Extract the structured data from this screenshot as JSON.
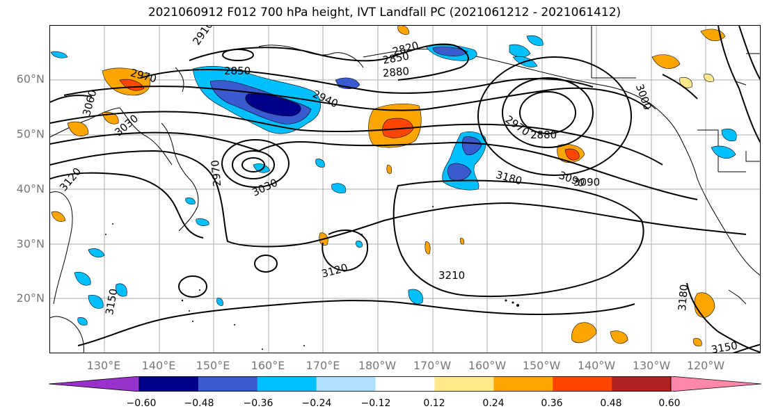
{
  "title": "2021060912 F012 700 hPa height, IVT Landfall PC (2021061212 - 2021061412)",
  "lat_labels": [
    "60°N",
    "50°N",
    "40°N",
    "30°N",
    "20°N"
  ],
  "lon_labels": [
    "130°E",
    "140°E",
    "150°E",
    "160°E",
    "170°E",
    "180°W",
    "170°W",
    "160°W",
    "150°W",
    "140°W",
    "130°W",
    "120°W"
  ],
  "contour_labels": [
    "2910",
    "2850",
    "2820",
    "2850",
    "2880",
    "2970",
    "2940",
    "2970",
    "2880",
    "3000",
    "3030",
    "3060",
    "2970",
    "3120",
    "3090",
    "3030",
    "3180",
    "3090",
    "3120",
    "3210",
    "3150",
    "3180",
    "3150"
  ],
  "colorbar": {
    "ticks": [
      "−0.60",
      "−0.48",
      "−0.36",
      "−0.24",
      "−0.12",
      "0.12",
      "0.24",
      "0.36",
      "0.48",
      "0.60"
    ],
    "colors": [
      "#9932cc",
      "#00008b",
      "#3a5bd0",
      "#00bfff",
      "#b0e0ff",
      "#ffffff",
      "#ffe98a",
      "#ffa500",
      "#ff4500",
      "#b22222",
      "#ff88aa"
    ]
  }
}
